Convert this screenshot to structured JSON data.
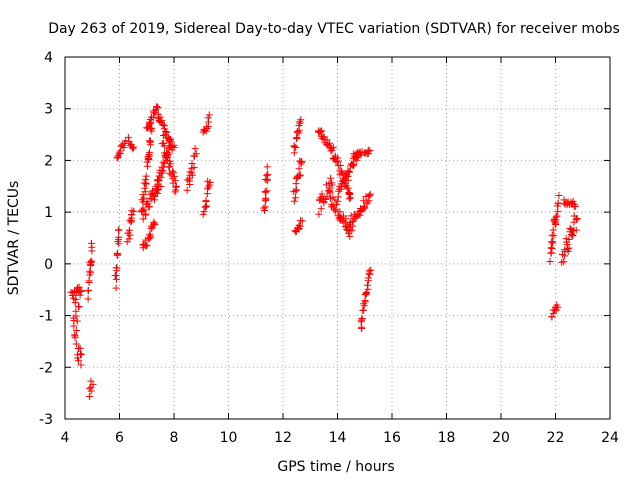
{
  "chart_data": {
    "type": "scatter",
    "title": "Day 263 of 2019, Sidereal Day-to-day VTEC variation (SDTVAR) for receiver mobs",
    "xlabel": "GPS time / hours",
    "ylabel": "SDTVAR / TECUs",
    "xlim": [
      4,
      24
    ],
    "ylim": [
      -3,
      4
    ],
    "xticks": [
      "4",
      "6",
      "8",
      "10",
      "12",
      "14",
      "16",
      "18",
      "20",
      "22",
      "24"
    ],
    "yticks": [
      "-3",
      "-2",
      "-1",
      "0",
      "1",
      "2",
      "3",
      "4"
    ],
    "grid": true,
    "marker": "+",
    "series_color": "#ff0000",
    "segments": [
      {
        "x": [
          4.25,
          4.5
        ],
        "y": [
          -0.6,
          -0.9
        ],
        "jitter": 0.28
      },
      {
        "x": [
          4.3,
          4.6
        ],
        "y": [
          -1.2,
          -1.9
        ],
        "jitter": 0.25
      },
      {
        "x": [
          4.35,
          4.6
        ],
        "y": [
          -0.65,
          -0.45
        ],
        "jitter": 0.12
      },
      {
        "x": [
          4.85,
          5.0
        ],
        "y": [
          -0.6,
          0.35
        ],
        "jitter": 0.12
      },
      {
        "x": [
          4.9,
          5.0
        ],
        "y": [
          -2.5,
          -2.3
        ],
        "jitter": 0.08
      },
      {
        "x": [
          5.85,
          6.0
        ],
        "y": [
          -0.4,
          0.65
        ],
        "jitter": 0.12
      },
      {
        "x": [
          5.9,
          6.2
        ],
        "y": [
          2.05,
          2.35
        ],
        "jitter": 0.06
      },
      {
        "x": [
          6.3,
          6.5
        ],
        "y": [
          2.4,
          2.25
        ],
        "jitter": 0.05
      },
      {
        "x": [
          6.3,
          6.5
        ],
        "y": [
          0.45,
          1.1
        ],
        "jitter": 0.12
      },
      {
        "x": [
          6.8,
          7.2
        ],
        "y": [
          1.0,
          2.6
        ],
        "jitter": 0.12
      },
      {
        "x": [
          7.0,
          7.4
        ],
        "y": [
          2.6,
          3.05
        ],
        "jitter": 0.06
      },
      {
        "x": [
          7.4,
          8.0
        ],
        "y": [
          2.9,
          2.2
        ],
        "jitter": 0.07
      },
      {
        "x": [
          6.85,
          7.3
        ],
        "y": [
          0.25,
          0.8
        ],
        "jitter": 0.1
      },
      {
        "x": [
          6.9,
          7.5
        ],
        "y": [
          1.0,
          1.6
        ],
        "jitter": 0.15
      },
      {
        "x": [
          7.3,
          7.9
        ],
        "y": [
          1.4,
          2.4
        ],
        "jitter": 0.1
      },
      {
        "x": [
          7.6,
          8.1
        ],
        "y": [
          2.4,
          1.4
        ],
        "jitter": 0.12
      },
      {
        "x": [
          8.5,
          8.8
        ],
        "y": [
          1.5,
          2.15
        ],
        "jitter": 0.12
      },
      {
        "x": [
          9.1,
          9.3
        ],
        "y": [
          2.5,
          2.85
        ],
        "jitter": 0.08
      },
      {
        "x": [
          9.1,
          9.3
        ],
        "y": [
          1.05,
          1.6
        ],
        "jitter": 0.12
      },
      {
        "x": [
          11.3,
          11.45
        ],
        "y": [
          1.0,
          1.85
        ],
        "jitter": 0.1
      },
      {
        "x": [
          12.4,
          12.65
        ],
        "y": [
          2.2,
          2.85
        ],
        "jitter": 0.1
      },
      {
        "x": [
          12.4,
          12.7
        ],
        "y": [
          1.3,
          2.05
        ],
        "jitter": 0.12
      },
      {
        "x": [
          12.45,
          12.7
        ],
        "y": [
          0.6,
          0.8
        ],
        "jitter": 0.06
      },
      {
        "x": [
          13.3,
          13.8
        ],
        "y": [
          2.6,
          2.2
        ],
        "jitter": 0.06
      },
      {
        "x": [
          13.8,
          14.5
        ],
        "y": [
          2.2,
          1.3
        ],
        "jitter": 0.12
      },
      {
        "x": [
          13.3,
          13.8
        ],
        "y": [
          1.1,
          1.6
        ],
        "jitter": 0.15
      },
      {
        "x": [
          13.7,
          14.5
        ],
        "y": [
          1.3,
          0.6
        ],
        "jitter": 0.12
      },
      {
        "x": [
          14.0,
          14.8
        ],
        "y": [
          1.3,
          2.15
        ],
        "jitter": 0.1
      },
      {
        "x": [
          14.6,
          15.2
        ],
        "y": [
          2.1,
          2.17
        ],
        "jitter": 0.04
      },
      {
        "x": [
          14.4,
          15.2
        ],
        "y": [
          0.75,
          1.35
        ],
        "jitter": 0.12
      },
      {
        "x": [
          14.85,
          15.2
        ],
        "y": [
          -1.25,
          -0.1
        ],
        "jitter": 0.06
      },
      {
        "x": [
          21.8,
          22.0
        ],
        "y": [
          0.1,
          0.95
        ],
        "jitter": 0.15
      },
      {
        "x": [
          21.85,
          22.1
        ],
        "y": [
          -1.0,
          -0.8
        ],
        "jitter": 0.06
      },
      {
        "x": [
          22.0,
          22.1
        ],
        "y": [
          0.8,
          1.3
        ],
        "jitter": 0.1
      },
      {
        "x": [
          22.3,
          22.75
        ],
        "y": [
          1.2,
          1.15
        ],
        "jitter": 0.05
      },
      {
        "x": [
          22.25,
          22.8
        ],
        "y": [
          0.05,
          0.9
        ],
        "jitter": 0.18
      }
    ]
  }
}
